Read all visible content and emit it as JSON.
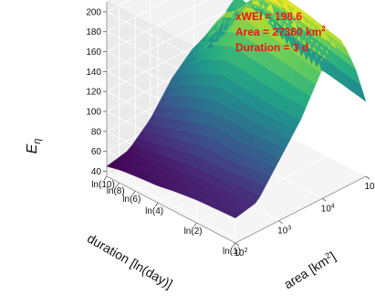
{
  "chart_data": {
    "type": "surface3d",
    "colormap": "viridis",
    "annotation": {
      "lines": [
        "xWEI = 198.6",
        "Area = 27360 km",
        "Duration = 3 d"
      ],
      "area_sup": "2",
      "color": "#e8141b",
      "peak": {
        "area_km2": 27360,
        "duration_days": 3,
        "value": 198.6
      }
    },
    "z_axis": {
      "label": "E",
      "label_sub": "η",
      "ticks": [
        40,
        60,
        80,
        100,
        120,
        140,
        160,
        180,
        200
      ],
      "range": [
        35,
        210
      ]
    },
    "duration_axis": {
      "label": "duration [ln(day)]",
      "ticks": [
        "ln(1)",
        "ln(2)",
        "ln(4)",
        "ln(6)",
        "ln(8)",
        "ln(10)"
      ],
      "tick_days": [
        1,
        2,
        4,
        6,
        8,
        10
      ]
    },
    "area_axis": {
      "label": "area [km",
      "label_sup": "2",
      "label_end": "]",
      "ticks": [
        {
          "base": "10",
          "exp": "2",
          "value": 100
        },
        {
          "base": "10",
          "exp": "3",
          "value": 1000
        },
        {
          "base": "10",
          "exp": "4",
          "value": 10000
        },
        {
          "base": "10",
          "exp": "5",
          "value": 100000
        }
      ],
      "scale": "log"
    },
    "surface_grid": {
      "duration_days": [
        1,
        2,
        3,
        4,
        6,
        8,
        10
      ],
      "area_km2": [
        100,
        316,
        1000,
        3162,
        10000,
        27360,
        56234,
        100000
      ],
      "values": [
        [
          60,
          65,
          95,
          125,
          165,
          185,
          150,
          110
        ],
        [
          58,
          62,
          90,
          125,
          175,
          195,
          160,
          118
        ],
        [
          55,
          60,
          92,
          128,
          178,
          198.6,
          165,
          120
        ],
        [
          52,
          58,
          88,
          130,
          180,
          195,
          172,
          125
        ],
        [
          50,
          55,
          80,
          120,
          170,
          160,
          170,
          140
        ],
        [
          48,
          52,
          75,
          110,
          140,
          130,
          150,
          145
        ],
        [
          45,
          50,
          70,
          100,
          120,
          110,
          140,
          150
        ]
      ]
    }
  }
}
